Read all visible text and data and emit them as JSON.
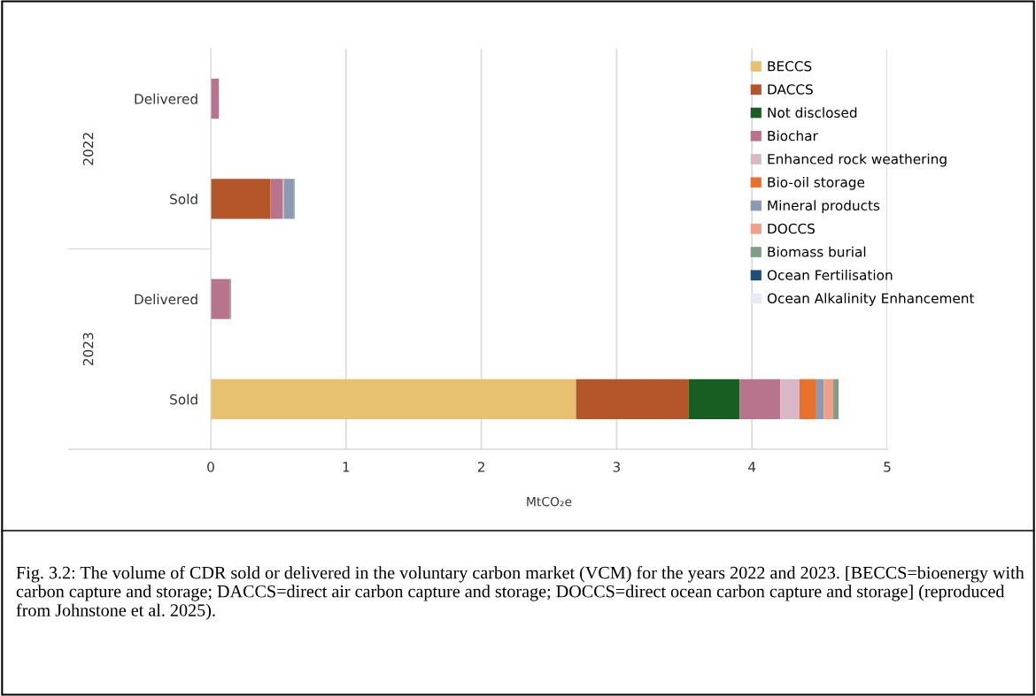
{
  "chart_data": {
    "type": "bar",
    "orientation": "horizontal",
    "stacked": true,
    "categories": [
      "Delivered",
      "Sold",
      "Delivered",
      "Sold"
    ],
    "series": [
      {
        "name": "BECCS",
        "color": "#e8c170",
        "values": [
          null,
          null,
          null,
          2.7
        ]
      },
      {
        "name": "DACCS",
        "color": "#b5562a",
        "values": [
          null,
          0.44,
          null,
          0.83
        ]
      },
      {
        "name": "Not disclosed",
        "color": "#185e22",
        "values": [
          null,
          null,
          null,
          0.38
        ]
      },
      {
        "name": "Biochar",
        "color": "#b7748c",
        "values": [
          0.06,
          0.09,
          0.14,
          0.3
        ]
      },
      {
        "name": "Enhanced rock weathering",
        "color": "#d8b8c6",
        "values": [
          null,
          0.01,
          null,
          0.14
        ]
      },
      {
        "name": "Bio-oil storage",
        "color": "#e8712e",
        "values": [
          null,
          null,
          null,
          0.12
        ]
      },
      {
        "name": "Mineral products",
        "color": "#8a9ab2",
        "values": [
          null,
          0.07,
          null,
          0.06
        ]
      },
      {
        "name": "DOCCS",
        "color": "#f0a08a",
        "values": [
          null,
          null,
          null,
          0.07
        ]
      },
      {
        "name": "Biomass burial",
        "color": "#7f9f86",
        "values": [
          null,
          0.01,
          0.01,
          0.04
        ]
      },
      {
        "name": "Ocean Fertilisation",
        "color": "#1f4e79",
        "values": [
          null,
          null,
          null,
          null
        ]
      },
      {
        "name": "Ocean Alkalinity Enhancement",
        "color": "#e6ebf3",
        "values": [
          null,
          null,
          null,
          null
        ]
      }
    ],
    "xlabel": "MtCO₂e",
    "xlim": [
      0,
      5
    ],
    "xticks": [
      0,
      1,
      2,
      3,
      4,
      5
    ],
    "grid": "x",
    "legend": "right",
    "annotations": [
      "2022",
      "2023",
      "Fig. 3.2: The volume of CDR sold or delivered in the voluntary carbon market (VCM) for the years 2022 and 2023. [BECCS=bioenergy with carbon capture and storage; DACCS=direct air carbon capture and storage; DOCCS=direct ocean carbon capture and storage] (reproduced from Johnstone et al. 2025)."
    ]
  }
}
